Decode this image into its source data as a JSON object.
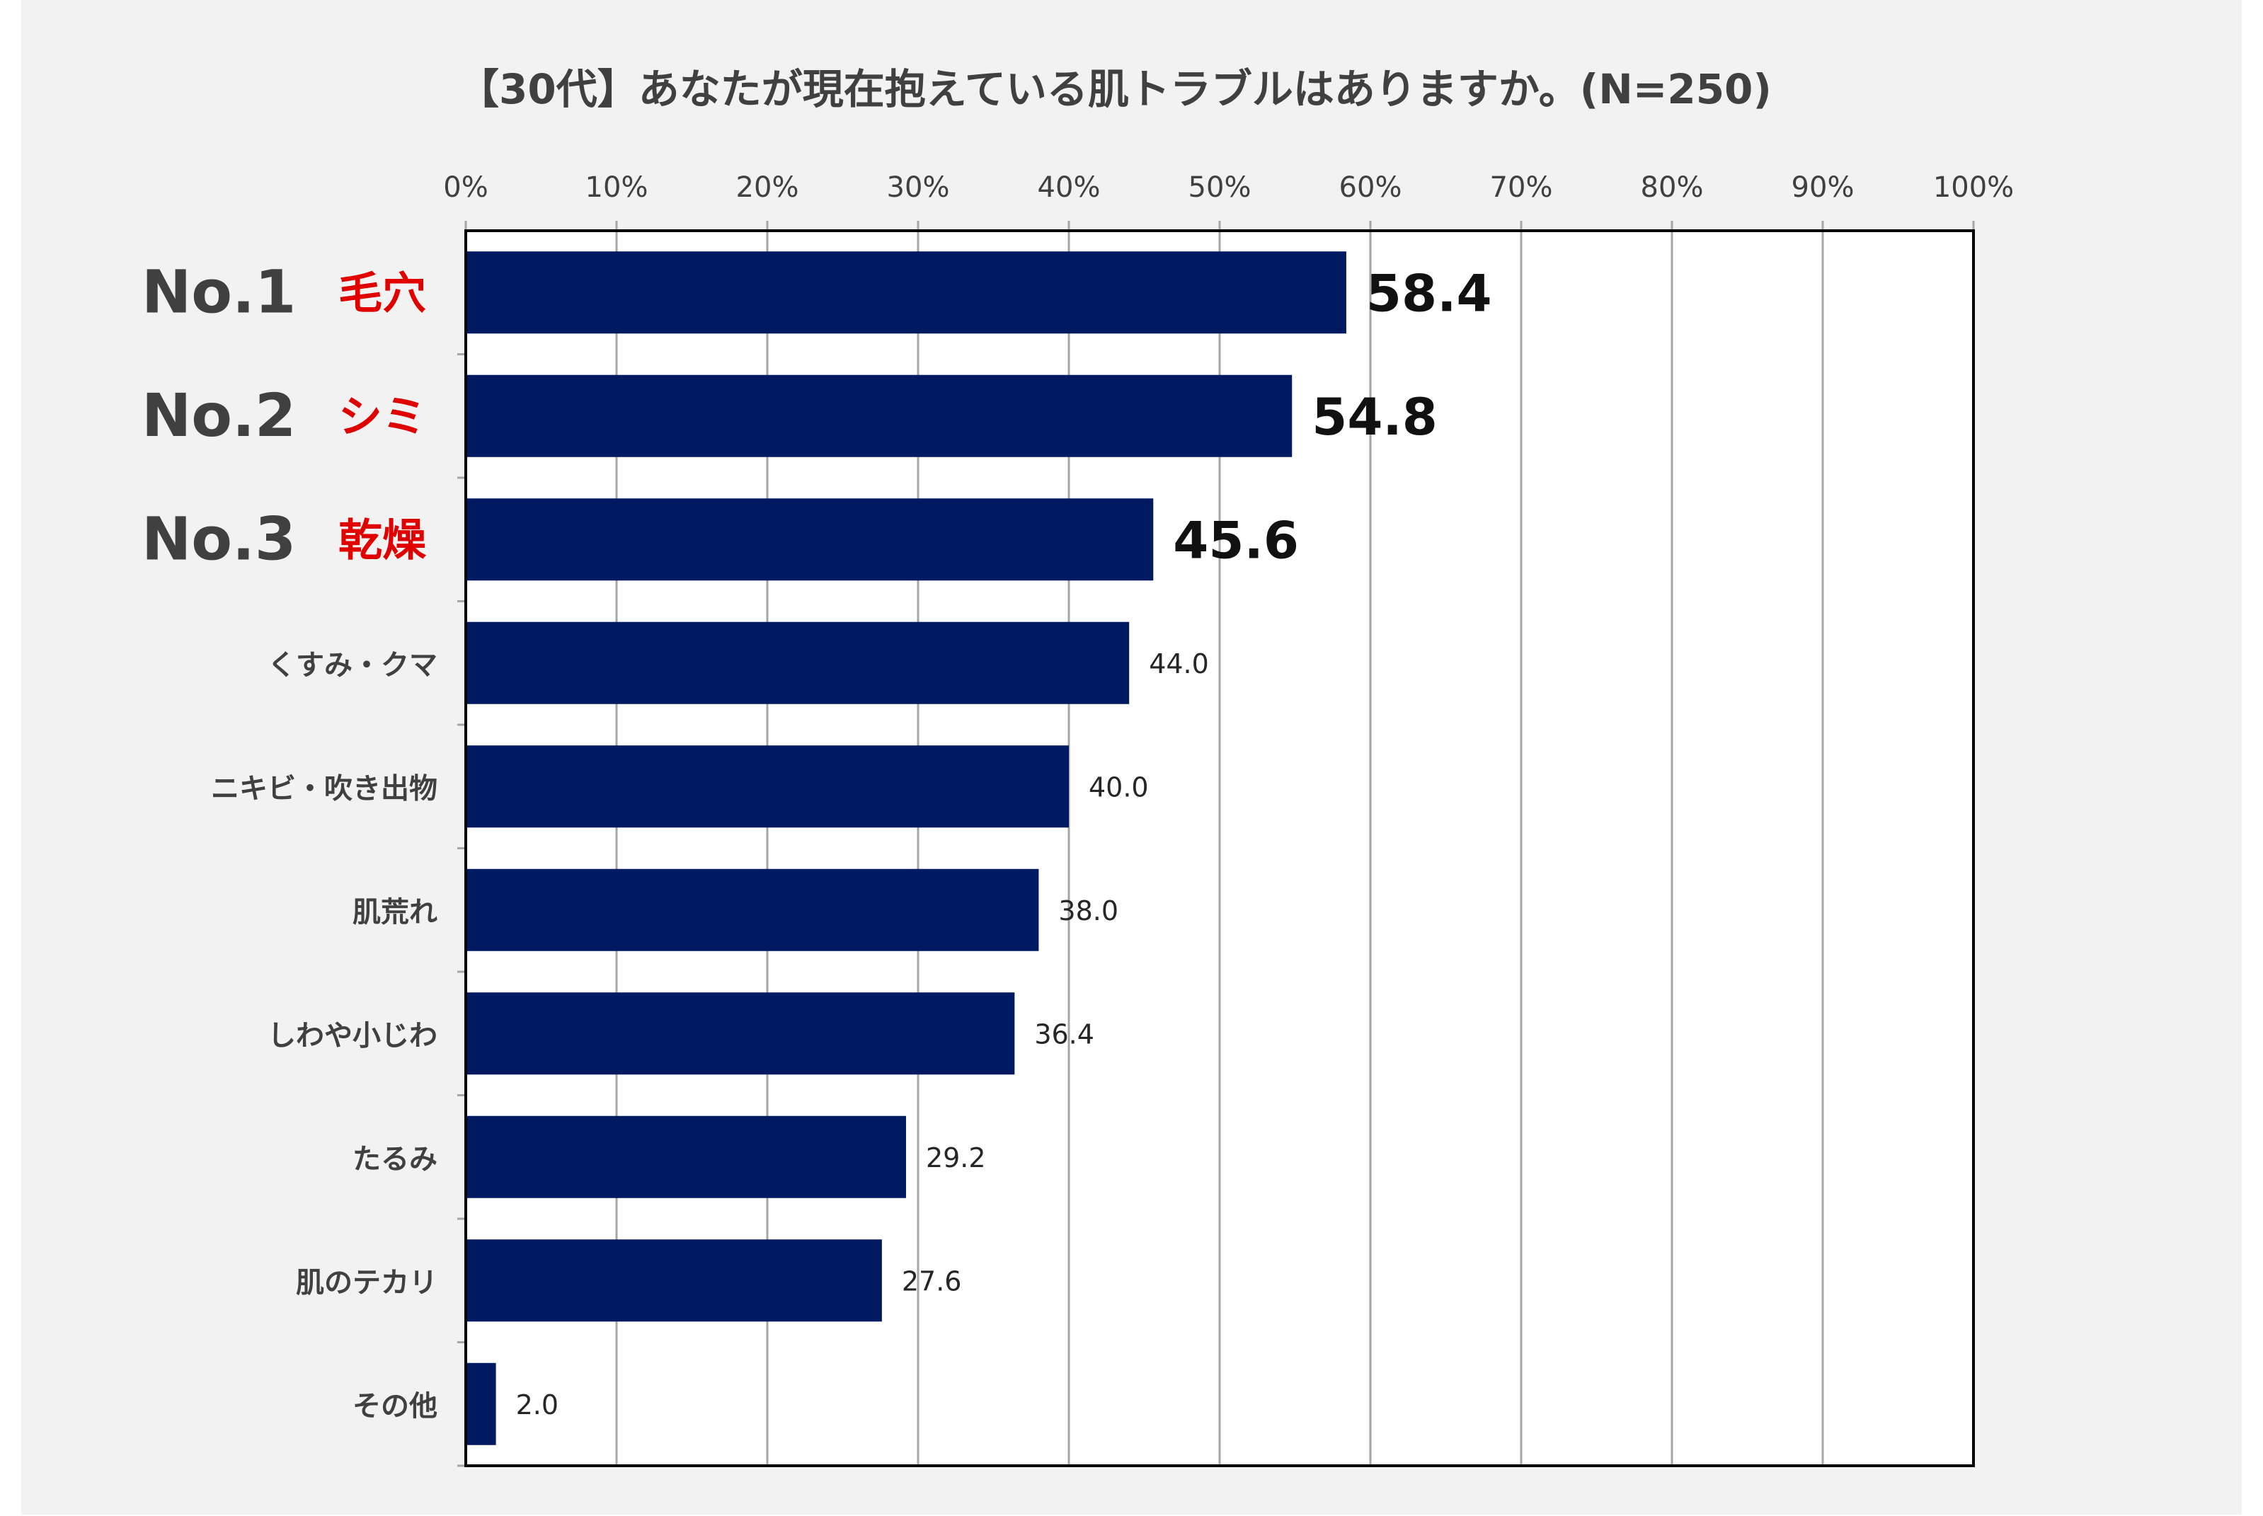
{
  "chart_data": {
    "type": "bar",
    "orientation": "horizontal",
    "title": "【30代】あなたが現在抱えている肌トラブルはありますか。(N=250)",
    "xlabel": "",
    "ylabel": "",
    "xlim": [
      0,
      100
    ],
    "x_ticks": [
      "0%",
      "10%",
      "20%",
      "30%",
      "40%",
      "50%",
      "60%",
      "70%",
      "80%",
      "90%",
      "100%"
    ],
    "grid": true,
    "legend": "none",
    "categories": [
      "毛穴",
      "シミ",
      "乾燥",
      "くすみ・クマ",
      "ニキビ・吹き出物",
      "肌荒れ",
      "しわや小じわ",
      "たるみ",
      "肌のテカリ",
      "その他"
    ],
    "values": [
      58.4,
      54.8,
      45.6,
      44.0,
      40.0,
      38.0,
      36.4,
      29.2,
      27.6,
      2.0
    ],
    "value_labels": [
      "58.4",
      "54.8",
      "45.6",
      "44.0",
      "40.0",
      "38.0",
      "36.4",
      "29.2",
      "27.6",
      "2.0"
    ],
    "rank_labels": [
      "No.1",
      "No.2",
      "No.3"
    ],
    "colors": {
      "bar": "#001a62",
      "rank_category": "#e00000",
      "text": "#404040",
      "grid": "#a6a6a6",
      "frame": "#000000",
      "plot_bg": "#ffffff",
      "figure_bg": "#f2f2f2"
    }
  }
}
